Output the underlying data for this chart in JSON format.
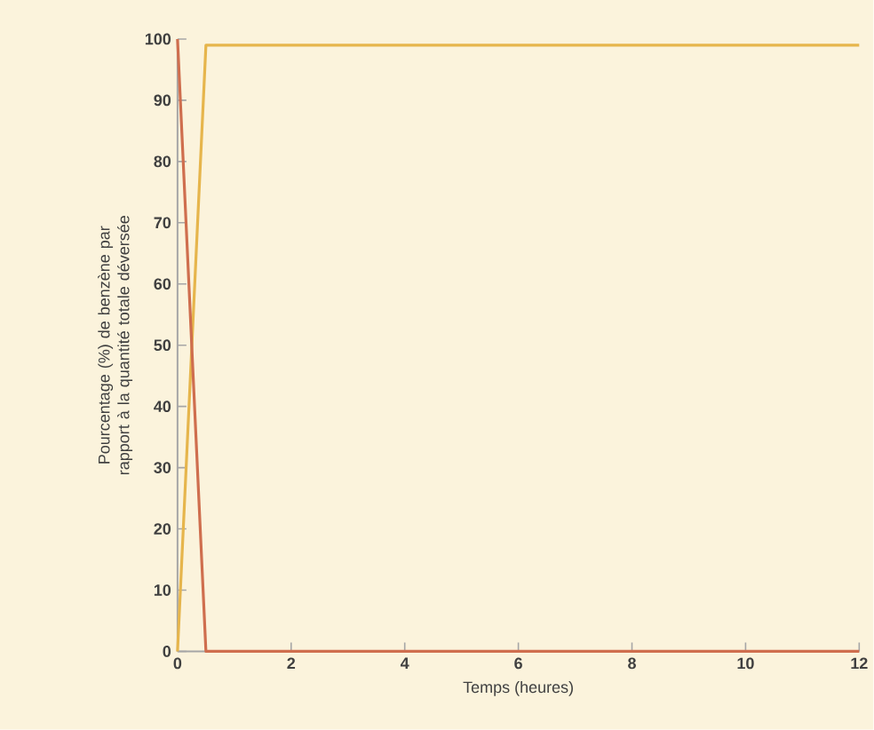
{
  "chart_data": {
    "type": "line",
    "xlabel": "Temps (heures)",
    "ylabel": "Pourcentage (%) de benzène par rapport à la quantité totale déversée",
    "xlim": [
      0,
      12
    ],
    "ylim": [
      0,
      100
    ],
    "xticks": [
      0,
      2,
      4,
      6,
      8,
      10,
      12
    ],
    "yticks": [
      0,
      10,
      20,
      30,
      40,
      50,
      60,
      70,
      80,
      90,
      100
    ],
    "series": [
      {
        "color": "#e6b54c",
        "x": [
          0,
          0.5,
          12
        ],
        "values": [
          0,
          99,
          99
        ]
      },
      {
        "color": "#cf6e4e",
        "x": [
          0,
          0.5,
          12
        ],
        "values": [
          100,
          0,
          0
        ]
      }
    ]
  }
}
